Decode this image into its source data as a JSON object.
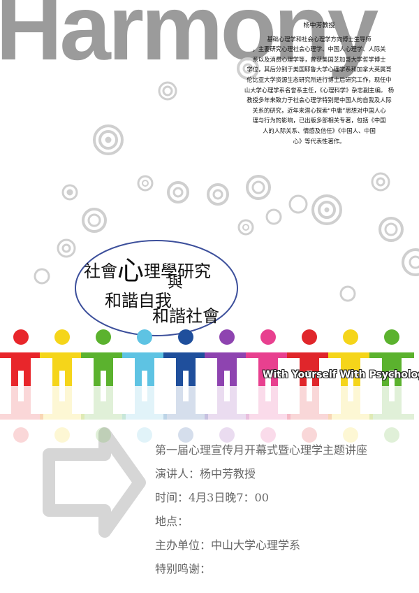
{
  "watermark": {
    "text": "Harmony"
  },
  "bio": {
    "name": "杨中芳教授",
    "lines": [
      "基础心理学和社会心理学方向博士生导师",
      "，主要研究心理社会心理学、中国人心理学、人际关",
      "系以及消费心理学等，曾获美国芝加哥大学哲学博士",
      "学位，其后分别于美国耶鲁大学心理学系和加拿大英属哥",
      "伦比亚大学资源生态研究所进行博士后研究工作，现任中",
      "山大学心理学系名誉系主任，《心理科学》杂志副主编。  杨",
      "教授多年来致力于社会心理学特别是中国人的自我及人际",
      "关系的研究，近年来潜心探索“中庸”思想对中国人心",
      "理与行为的影响，已出版多部相关专著，包括《中国",
      "人的人际关系、情感及信任》《中国人、中国",
      "心》等代表性著作。"
    ]
  },
  "title": {
    "part1": "社會",
    "part_big": "心",
    "part2": "理學研究",
    "connector": "與",
    "line2": "和諧自我",
    "line3": "和諧社會"
  },
  "tagline": "With Yourself With Psychology",
  "figure_colors": [
    "#e8262b",
    "#f5d51a",
    "#5bb22e",
    "#5ec3e3",
    "#1f4f9c",
    "#8e44b0",
    "#e8408f",
    "#e0262b",
    "#f5d51a",
    "#5bb22e"
  ],
  "event": {
    "title": "第一届心理宣传月开幕式暨心理学主题讲座",
    "speaker": "演讲人：杨中芳教授",
    "time": "时间：4月3日晚7：00",
    "place": "地点：",
    "organizer": "主办单位：中山大学心理学系",
    "thanks": "特别鸣谢："
  }
}
